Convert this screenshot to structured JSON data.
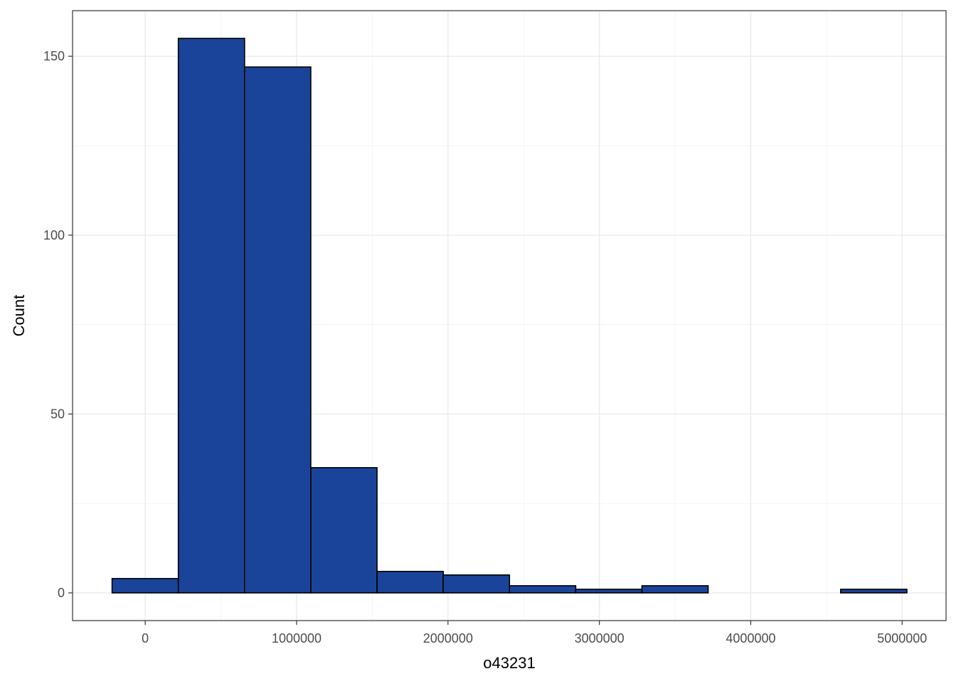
{
  "chart_data": {
    "type": "bar",
    "subtype": "histogram",
    "title": "",
    "xlabel": "o43231",
    "ylabel": "Count",
    "bins": [
      {
        "x0": -218750,
        "x1": 218750,
        "count": 4
      },
      {
        "x0": 218750,
        "x1": 656250,
        "count": 155
      },
      {
        "x0": 656250,
        "x1": 1093750,
        "count": 147
      },
      {
        "x0": 1093750,
        "x1": 1531250,
        "count": 35
      },
      {
        "x0": 1531250,
        "x1": 1968750,
        "count": 6
      },
      {
        "x0": 1968750,
        "x1": 2406250,
        "count": 5
      },
      {
        "x0": 2406250,
        "x1": 2843750,
        "count": 2
      },
      {
        "x0": 2843750,
        "x1": 3281250,
        "count": 1
      },
      {
        "x0": 3281250,
        "x1": 3718750,
        "count": 2
      },
      {
        "x0": 3718750,
        "x1": 4156250,
        "count": 0
      },
      {
        "x0": 4156250,
        "x1": 4593750,
        "count": 0
      },
      {
        "x0": 4593750,
        "x1": 5031250,
        "count": 1
      }
    ],
    "xlim": [
      -480000,
      5290000
    ],
    "ylim": [
      -7.75,
      162.75
    ],
    "x_ticks": [
      0,
      1000000,
      2000000,
      3000000,
      4000000,
      5000000
    ],
    "x_tick_labels": [
      "0",
      "1000000",
      "2000000",
      "3000000",
      "4000000",
      "5000000"
    ],
    "y_ticks": [
      0,
      50,
      100,
      150
    ],
    "y_tick_labels": [
      "0",
      "50",
      "100",
      "150"
    ],
    "grid": true,
    "legend": "none",
    "bar_fill": "#1a4499",
    "bar_stroke": "#000000"
  }
}
